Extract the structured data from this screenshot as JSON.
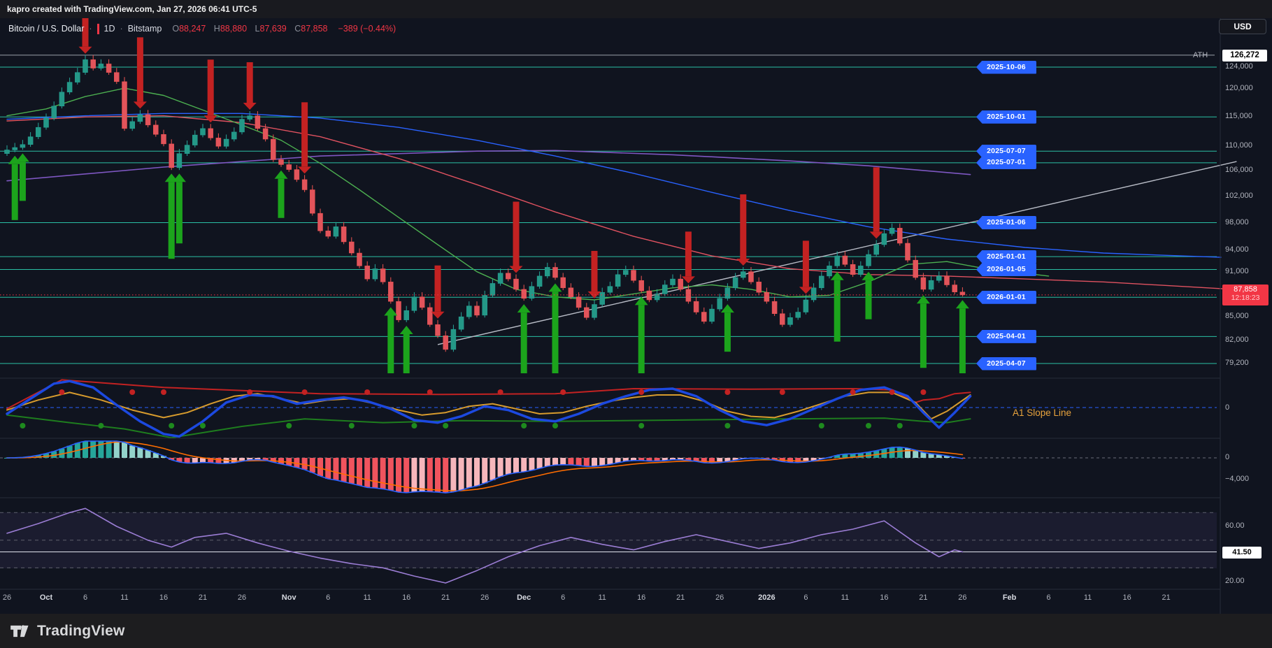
{
  "attribution": "kapro created with TradingView.com, Jan 27, 2026 06:41 UTC-5",
  "header": {
    "symbol": "Bitcoin / U.S. Dollar",
    "separator": "·",
    "interval": "1D",
    "exchange": "Bitstamp",
    "o_key": "O",
    "o_val": "88,247",
    "h_key": "H",
    "h_val": "88,880",
    "l_key": "L",
    "l_val": "87,639",
    "c_key": "C",
    "c_val": "87,858",
    "change": "−389 (−0.44%)"
  },
  "currency_button": "USD",
  "price_axis": {
    "ath_label": "ATH",
    "ath_badge": "126,272",
    "last_price": "87,858",
    "countdown": "12:18:23",
    "ticks": [
      {
        "p": 124000,
        "label": "124,000"
      },
      {
        "p": 120000,
        "label": "120,000"
      },
      {
        "p": 115000,
        "label": "115,000"
      },
      {
        "p": 110000,
        "label": "110,000"
      },
      {
        "p": 106000,
        "label": "106,000"
      },
      {
        "p": 102000,
        "label": "102,000"
      },
      {
        "p": 98000,
        "label": "98,000"
      },
      {
        "p": 94000,
        "label": "94,000"
      },
      {
        "p": 91000,
        "label": "91,000"
      },
      {
        "p": 85000,
        "label": "85,000"
      },
      {
        "p": 82000,
        "label": "82,000"
      },
      {
        "p": 79200,
        "label": "79,200"
      }
    ]
  },
  "panel_axis": {
    "p1_zero": "0",
    "p2_zero": "0",
    "p2_neg": "−4,000",
    "p3_high": "60.00",
    "p3_low": "20.00",
    "p3_value": "41.50"
  },
  "indicator_label": "A1 Slope Line",
  "footer_logo": "TradingView",
  "time_axis": [
    [
      "26",
      0,
      0
    ],
    [
      "Oct",
      5,
      1
    ],
    [
      "6",
      10,
      0
    ],
    [
      "11",
      15,
      0
    ],
    [
      "16",
      20,
      0
    ],
    [
      "21",
      25,
      0
    ],
    [
      "26",
      30,
      0
    ],
    [
      "Nov",
      36,
      1
    ],
    [
      "6",
      41,
      0
    ],
    [
      "11",
      46,
      0
    ],
    [
      "16",
      51,
      0
    ],
    [
      "21",
      56,
      0
    ],
    [
      "26",
      61,
      0
    ],
    [
      "Dec",
      66,
      1
    ],
    [
      "6",
      71,
      0
    ],
    [
      "11",
      76,
      0
    ],
    [
      "16",
      81,
      0
    ],
    [
      "21",
      86,
      0
    ],
    [
      "26",
      91,
      0
    ],
    [
      "2026",
      97,
      1
    ],
    [
      "6",
      102,
      0
    ],
    [
      "11",
      107,
      0
    ],
    [
      "16",
      112,
      0
    ],
    [
      "21",
      117,
      0
    ],
    [
      "26",
      122,
      0
    ],
    [
      "Feb",
      128,
      1
    ],
    [
      "6",
      133,
      0
    ],
    [
      "11",
      138,
      0
    ],
    [
      "16",
      143,
      0
    ],
    [
      "21",
      148,
      0
    ]
  ],
  "chart_data": {
    "type": "candlestick",
    "title": "Bitcoin / U.S. Dollar, 1D, Bitstamp",
    "start_date": "2025-09-26",
    "ath": 126272,
    "last": {
      "open": 88247,
      "high": 88880,
      "low": 87639,
      "close": 87858,
      "change": -389,
      "change_pct": -0.44
    },
    "first_open": 108800,
    "closes": [
      109400,
      109800,
      110300,
      111600,
      113200,
      114800,
      116900,
      119400,
      121200,
      123000,
      125400,
      123800,
      124600,
      123000,
      121300,
      113000,
      114200,
      115400,
      113600,
      112000,
      110400,
      106500,
      108800,
      110200,
      111900,
      113000,
      111400,
      110000,
      111200,
      112400,
      114600,
      115200,
      113000,
      111200,
      107800,
      107000,
      106200,
      104600,
      103000,
      99400,
      96800,
      96000,
      97400,
      95200,
      93600,
      91800,
      90000,
      91400,
      89600,
      87000,
      84600,
      85800,
      87600,
      86200,
      84000,
      82600,
      80900,
      83400,
      85000,
      86400,
      85200,
      87800,
      89400,
      90800,
      90000,
      88600,
      87400,
      89000,
      90400,
      91600,
      90200,
      88800,
      87600,
      86200,
      84900,
      86600,
      88200,
      89000,
      90600,
      91200,
      89800,
      88400,
      87200,
      88000,
      89200,
      90000,
      88600,
      87000,
      85600,
      84400,
      86000,
      87400,
      88800,
      90200,
      91000,
      89600,
      88200,
      87000,
      85400,
      84000,
      84900,
      85600,
      87200,
      88800,
      90400,
      91800,
      93200,
      92000,
      90600,
      91800,
      93400,
      94800,
      96400,
      97200,
      95000,
      92600,
      90200,
      88600,
      89800,
      90400,
      89200,
      88247,
      87858
    ],
    "flags": [
      {
        "date": "2025-10-06",
        "price": 124000
      },
      {
        "date": "2025-10-01",
        "price": 115000
      },
      {
        "date": "2025-07-07",
        "price": 109200
      },
      {
        "date": "2025-07-01",
        "price": 107300
      },
      {
        "date": "2025-01-06",
        "price": 98000
      },
      {
        "date": "2025-01-01",
        "price": 93100
      },
      {
        "date": "2026-01-05",
        "price": 91300
      },
      {
        "date": "2026-01-01",
        "price": 87550
      },
      {
        "date": "2025-04-01",
        "price": 82500
      },
      {
        "date": "2025-04-07",
        "price": 79200
      }
    ],
    "trendline": [
      [
        55,
        81500
      ],
      [
        157,
        107500
      ]
    ],
    "ma": {
      "green": [
        [
          0,
          115200
        ],
        [
          5,
          116400
        ],
        [
          10,
          118600
        ],
        [
          15,
          120100
        ],
        [
          20,
          118800
        ],
        [
          25,
          116200
        ],
        [
          30,
          113600
        ],
        [
          35,
          111000
        ],
        [
          40,
          107200
        ],
        [
          45,
          103000
        ],
        [
          50,
          98800
        ],
        [
          55,
          94800
        ],
        [
          60,
          91000
        ],
        [
          65,
          88600
        ],
        [
          70,
          87600
        ],
        [
          75,
          87200
        ],
        [
          80,
          88000
        ],
        [
          85,
          88800
        ],
        [
          90,
          89200
        ],
        [
          95,
          88600
        ],
        [
          100,
          87600
        ],
        [
          105,
          87800
        ],
        [
          110,
          89600
        ],
        [
          115,
          92000
        ],
        [
          120,
          92400
        ],
        [
          125,
          91400
        ],
        [
          133,
          90400
        ]
      ],
      "red": [
        [
          0,
          114300
        ],
        [
          10,
          115000
        ],
        [
          20,
          115200
        ],
        [
          30,
          114000
        ],
        [
          40,
          111600
        ],
        [
          50,
          108000
        ],
        [
          60,
          103800
        ],
        [
          70,
          99600
        ],
        [
          80,
          96000
        ],
        [
          90,
          93200
        ],
        [
          100,
          91400
        ],
        [
          110,
          90600
        ],
        [
          120,
          90400
        ],
        [
          130,
          90000
        ],
        [
          140,
          89600
        ],
        [
          150,
          89000
        ],
        [
          160,
          88400
        ]
      ],
      "blue": [
        [
          0,
          114600
        ],
        [
          10,
          115200
        ],
        [
          20,
          115600
        ],
        [
          30,
          115600
        ],
        [
          40,
          114800
        ],
        [
          50,
          113200
        ],
        [
          60,
          111000
        ],
        [
          70,
          108400
        ],
        [
          80,
          105600
        ],
        [
          90,
          102600
        ],
        [
          100,
          99800
        ],
        [
          110,
          97400
        ],
        [
          120,
          95600
        ],
        [
          130,
          94400
        ],
        [
          140,
          93600
        ],
        [
          150,
          93200
        ],
        [
          155,
          93000
        ]
      ],
      "purple": [
        [
          0,
          104400
        ],
        [
          20,
          106600
        ],
        [
          40,
          108400
        ],
        [
          60,
          109200
        ],
        [
          70,
          109300
        ],
        [
          85,
          108600
        ],
        [
          100,
          107600
        ],
        [
          110,
          106800
        ],
        [
          123,
          105400
        ]
      ]
    },
    "signals": {
      "sell": [
        [
          10,
          64
        ],
        [
          17,
          92
        ],
        [
          26,
          80
        ],
        [
          31,
          58
        ],
        [
          38,
          92
        ],
        [
          55,
          66
        ],
        [
          65,
          92
        ],
        [
          75,
          58
        ],
        [
          87,
          64
        ],
        [
          94,
          92
        ],
        [
          102,
          66
        ],
        [
          111,
          92
        ]
      ],
      "buy": [
        [
          1,
          80
        ],
        [
          2,
          56
        ],
        [
          21,
          110
        ],
        [
          22,
          88
        ],
        [
          35,
          56
        ],
        [
          49,
          150
        ],
        [
          51,
          118
        ],
        [
          66,
          88
        ],
        [
          70,
          150
        ],
        [
          81,
          118
        ],
        [
          92,
          56
        ],
        [
          106,
          88
        ],
        [
          110,
          56
        ],
        [
          117,
          92
        ],
        [
          122,
          140
        ]
      ]
    },
    "panel1": {
      "name": "A1 Slope Line",
      "blue": [
        [
          0,
          -0.25
        ],
        [
          3,
          0.35
        ],
        [
          6,
          0.95
        ],
        [
          8,
          1.05
        ],
        [
          11,
          0.8
        ],
        [
          14,
          0.1
        ],
        [
          17,
          -0.55
        ],
        [
          20,
          -1.05
        ],
        [
          22,
          -1.15
        ],
        [
          25,
          -0.55
        ],
        [
          28,
          0.2
        ],
        [
          31,
          0.5
        ],
        [
          34,
          0.45
        ],
        [
          37,
          0.15
        ],
        [
          40,
          0.3
        ],
        [
          43,
          0.4
        ],
        [
          46,
          0.25
        ],
        [
          49,
          -0.05
        ],
        [
          52,
          -0.5
        ],
        [
          55,
          -0.6
        ],
        [
          58,
          -0.35
        ],
        [
          61,
          0.05
        ],
        [
          64,
          -0.1
        ],
        [
          67,
          -0.45
        ],
        [
          70,
          -0.55
        ],
        [
          73,
          -0.25
        ],
        [
          76,
          0.15
        ],
        [
          79,
          0.45
        ],
        [
          82,
          0.7
        ],
        [
          85,
          0.75
        ],
        [
          88,
          0.45
        ],
        [
          91,
          -0.1
        ],
        [
          94,
          -0.55
        ],
        [
          97,
          -0.7
        ],
        [
          100,
          -0.45
        ],
        [
          103,
          -0.05
        ],
        [
          106,
          0.35
        ],
        [
          109,
          0.7
        ],
        [
          112,
          0.8
        ],
        [
          115,
          0.45
        ],
        [
          117,
          -0.2
        ],
        [
          119,
          -0.8
        ],
        [
          121,
          -0.2
        ],
        [
          123,
          0.45
        ]
      ],
      "orange": [
        [
          0,
          -0.1
        ],
        [
          4,
          0.3
        ],
        [
          8,
          0.6
        ],
        [
          12,
          0.3
        ],
        [
          16,
          -0.1
        ],
        [
          20,
          -0.4
        ],
        [
          23,
          -0.2
        ],
        [
          26,
          0.15
        ],
        [
          29,
          0.45
        ],
        [
          32,
          0.55
        ],
        [
          35,
          0.35
        ],
        [
          38,
          0.15
        ],
        [
          41,
          0.3
        ],
        [
          44,
          0.35
        ],
        [
          47,
          0.15
        ],
        [
          50,
          -0.1
        ],
        [
          53,
          -0.3
        ],
        [
          56,
          -0.2
        ],
        [
          59,
          0.05
        ],
        [
          62,
          0.15
        ],
        [
          65,
          -0.05
        ],
        [
          68,
          -0.25
        ],
        [
          71,
          -0.2
        ],
        [
          74,
          0.05
        ],
        [
          77,
          0.25
        ],
        [
          80,
          0.4
        ],
        [
          83,
          0.5
        ],
        [
          86,
          0.5
        ],
        [
          89,
          0.25
        ],
        [
          92,
          -0.15
        ],
        [
          95,
          -0.35
        ],
        [
          98,
          -0.4
        ],
        [
          101,
          -0.15
        ],
        [
          104,
          0.15
        ],
        [
          107,
          0.45
        ],
        [
          110,
          0.6
        ],
        [
          113,
          0.6
        ],
        [
          116,
          0.2
        ],
        [
          118,
          -0.45
        ],
        [
          120,
          -0.15
        ],
        [
          123,
          0.5
        ]
      ],
      "red_env": [
        [
          0,
          -0.05
        ],
        [
          7,
          1.1
        ],
        [
          20,
          0.8
        ],
        [
          40,
          0.55
        ],
        [
          55,
          0.52
        ],
        [
          70,
          0.55
        ],
        [
          80,
          0.75
        ],
        [
          95,
          0.73
        ],
        [
          108,
          0.75
        ],
        [
          113,
          0.7
        ],
        [
          116,
          0.2
        ],
        [
          117,
          0.3
        ],
        [
          119,
          0.35
        ],
        [
          121,
          0.55
        ],
        [
          123,
          0.6
        ]
      ],
      "green_env": [
        [
          0,
          -0.3
        ],
        [
          8,
          -0.6
        ],
        [
          15,
          -0.85
        ],
        [
          21,
          -1.2
        ],
        [
          30,
          -0.75
        ],
        [
          38,
          -0.45
        ],
        [
          48,
          -0.6
        ],
        [
          58,
          -0.52
        ],
        [
          70,
          -0.55
        ],
        [
          85,
          -0.5
        ],
        [
          100,
          -0.45
        ],
        [
          112,
          -0.42
        ],
        [
          117,
          -0.55
        ],
        [
          120,
          -0.6
        ],
        [
          123,
          -0.45
        ]
      ],
      "red_dots": [
        7,
        16,
        20,
        31,
        38,
        46,
        54,
        63,
        71,
        81,
        92,
        99,
        108,
        113,
        117
      ],
      "green_dots": [
        2,
        12,
        21,
        25,
        36,
        44,
        52,
        56,
        66,
        70,
        81,
        92,
        104,
        110,
        114
      ]
    },
    "panel3": {
      "name": "RSI",
      "bands": [
        70,
        50,
        30
      ],
      "value": 41.5,
      "points": [
        [
          0,
          55
        ],
        [
          4,
          62
        ],
        [
          8,
          70
        ],
        [
          10,
          73
        ],
        [
          14,
          60
        ],
        [
          18,
          50
        ],
        [
          21,
          45
        ],
        [
          24,
          52
        ],
        [
          28,
          55
        ],
        [
          32,
          48
        ],
        [
          36,
          42
        ],
        [
          40,
          37
        ],
        [
          44,
          33
        ],
        [
          48,
          30
        ],
        [
          52,
          24
        ],
        [
          56,
          19
        ],
        [
          60,
          28
        ],
        [
          64,
          38
        ],
        [
          68,
          46
        ],
        [
          72,
          52
        ],
        [
          76,
          47
        ],
        [
          80,
          43
        ],
        [
          84,
          49
        ],
        [
          88,
          54
        ],
        [
          92,
          49
        ],
        [
          96,
          44
        ],
        [
          100,
          48
        ],
        [
          104,
          54
        ],
        [
          108,
          58
        ],
        [
          112,
          64
        ],
        [
          116,
          48
        ],
        [
          119,
          38
        ],
        [
          121,
          43
        ],
        [
          122,
          41.5
        ]
      ]
    }
  }
}
